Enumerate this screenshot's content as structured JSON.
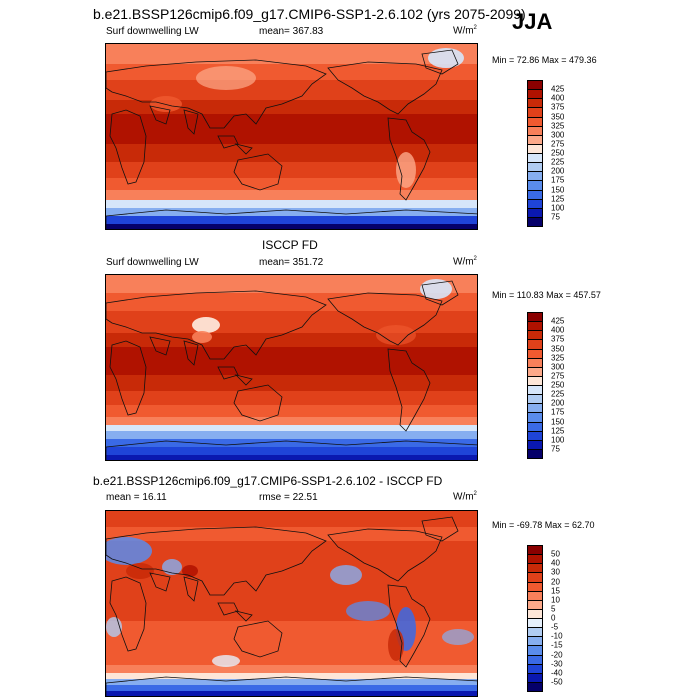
{
  "header": {
    "title": "b.e21.BSSP126cmip6.f09_g17.CMIP6-SSP1-2.6.102 (yrs 2075-2099)",
    "season": "JJA"
  },
  "panels": [
    {
      "id": "model",
      "center_title": "",
      "left_label": "Surf downwelling LW",
      "mid_label": "mean= 367.83",
      "units_base": "W/m",
      "units_exp": "2",
      "minmax": "Min =  72.86 Max = 479.36",
      "levels": [
        "425",
        "400",
        "375",
        "350",
        "325",
        "300",
        "275",
        "250",
        "225",
        "200",
        "175",
        "150",
        "125",
        "100",
        "75"
      ],
      "colors": [
        "#8a0000",
        "#b01200",
        "#c82a08",
        "#e0411a",
        "#f05a30",
        "#f8805a",
        "#fca98a",
        "#fde6d8",
        "#d6e6fa",
        "#b0ccf2",
        "#86aef0",
        "#5a8cec",
        "#3a6ae6",
        "#1f44d8",
        "#0a18b0",
        "#05006a"
      ]
    },
    {
      "id": "obs",
      "center_title": "ISCCP FD",
      "left_label": "Surf downwelling LW",
      "mid_label": "mean= 351.72",
      "units_base": "W/m",
      "units_exp": "2",
      "minmax": "Min = 110.83 Max = 457.57",
      "levels": [
        "425",
        "400",
        "375",
        "350",
        "325",
        "300",
        "275",
        "250",
        "225",
        "200",
        "175",
        "150",
        "125",
        "100",
        "75"
      ],
      "colors": [
        "#8a0000",
        "#b01200",
        "#c82a08",
        "#e0411a",
        "#f05a30",
        "#f8805a",
        "#fca98a",
        "#fde6d8",
        "#d6e6fa",
        "#b0ccf2",
        "#86aef0",
        "#5a8cec",
        "#3a6ae6",
        "#1f44d8",
        "#0a18b0",
        "#05006a"
      ]
    },
    {
      "id": "diff",
      "center_title": "b.e21.BSSP126cmip6.f09_g17.CMIP6-SSP1-2.6.102 - ISCCP FD",
      "left_label": "mean =  16.11",
      "mid_label": "rmse =  22.51",
      "units_base": "W/m",
      "units_exp": "2",
      "minmax": "Min = -69.78 Max =  62.70",
      "levels": [
        "50",
        "40",
        "30",
        "20",
        "15",
        "10",
        "5",
        "0",
        "-5",
        "-10",
        "-15",
        "-20",
        "-30",
        "-40",
        "-50"
      ],
      "colors": [
        "#8a0000",
        "#b01200",
        "#c82a08",
        "#e0411a",
        "#f05a30",
        "#f8805a",
        "#fca98a",
        "#fde6d8",
        "#e6f0fc",
        "#b0ccf2",
        "#86aef0",
        "#5a8cec",
        "#3a6ae6",
        "#1f44d8",
        "#0a18b0",
        "#05006a"
      ]
    }
  ]
}
